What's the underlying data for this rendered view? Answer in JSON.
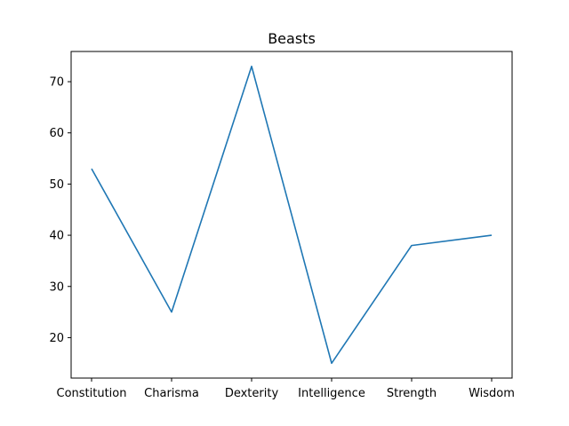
{
  "chart_data": {
    "type": "line",
    "title": "Beasts",
    "xlabel": "",
    "ylabel": "",
    "categories": [
      "Constitution",
      "Charisma",
      "Dexterity",
      "Intelligence",
      "Strength",
      "Wisdom"
    ],
    "series": [
      {
        "values": [
          53,
          25,
          73,
          15,
          38,
          40
        ],
        "color": "#1f77b4"
      }
    ],
    "ylim": [
      12.1,
      75.9
    ],
    "yticks": [
      20,
      30,
      40,
      50,
      60,
      70
    ],
    "grid": false,
    "legend": "none"
  }
}
